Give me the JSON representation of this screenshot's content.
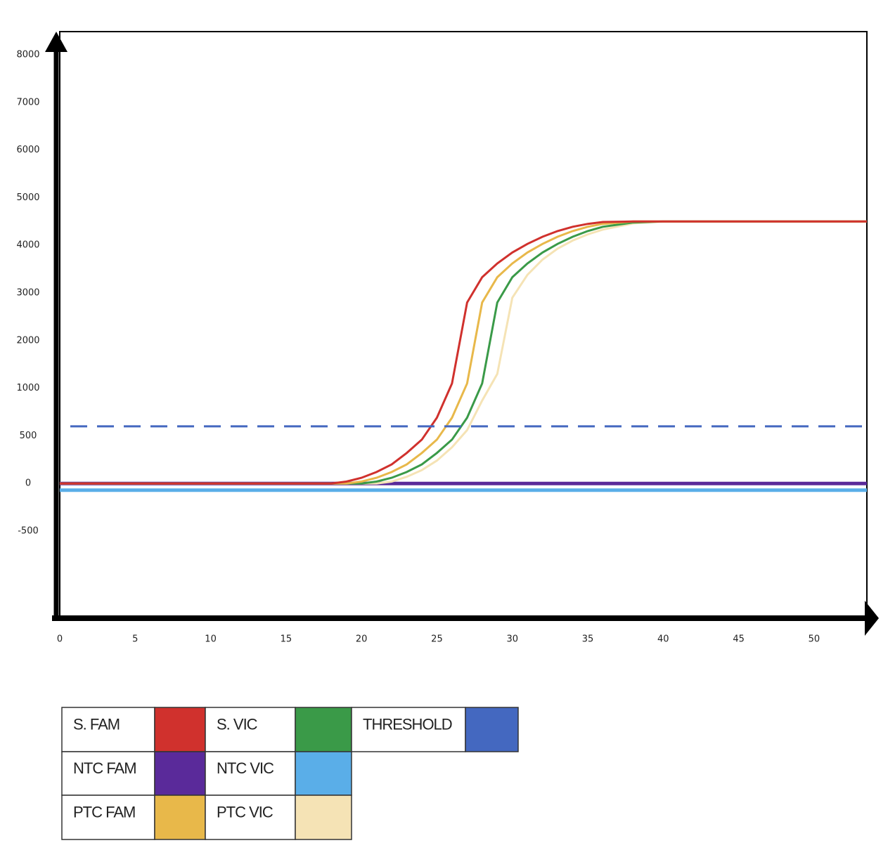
{
  "chart_data": {
    "type": "line",
    "x": [
      0,
      18,
      19,
      20,
      21,
      22,
      23,
      24,
      25,
      26,
      27,
      28,
      29,
      30,
      31,
      32,
      33,
      34,
      35,
      36,
      38,
      40,
      53.5
    ],
    "series": [
      {
        "name": "S. FAM",
        "color": "#d0312d",
        "values": [
          0,
          0,
          20,
          60,
          120,
          200,
          320,
          460,
          690,
          1100,
          2800,
          3330,
          3620,
          3850,
          4030,
          4180,
          4300,
          4390,
          4450,
          4490,
          4500,
          4500,
          4500
        ]
      },
      {
        "name": "S. VIC",
        "color": "#3a9a48",
        "values": [
          0,
          0,
          0,
          0,
          20,
          60,
          120,
          200,
          320,
          460,
          690,
          1100,
          2800,
          3330,
          3620,
          3850,
          4030,
          4180,
          4300,
          4390,
          4480,
          4500,
          4500
        ]
      },
      {
        "name": "NTC FAM",
        "color": "#5a2a9a",
        "values": [
          0,
          0,
          0,
          0,
          0,
          0,
          0,
          0,
          0,
          0,
          0,
          0,
          0,
          0,
          0,
          0,
          0,
          0,
          0,
          0,
          0,
          0,
          0
        ]
      },
      {
        "name": "NTC VIC",
        "color": "#5aaee8",
        "values": [
          -70,
          -70,
          -70,
          -70,
          -70,
          -70,
          -70,
          -70,
          -70,
          -70,
          -70,
          -70,
          -70,
          -70,
          -70,
          -70,
          -70,
          -70,
          -70,
          -70,
          -70,
          -70,
          -70
        ]
      },
      {
        "name": "PTC FAM",
        "color": "#e8b84a",
        "values": [
          0,
          0,
          0,
          20,
          60,
          120,
          200,
          320,
          460,
          690,
          1100,
          2800,
          3330,
          3620,
          3850,
          4030,
          4180,
          4300,
          4390,
          4450,
          4500,
          4500,
          4500
        ]
      },
      {
        "name": "PTC VIC",
        "color": "#f5e3b5",
        "values": [
          0,
          0,
          0,
          0,
          0,
          20,
          70,
          140,
          240,
          380,
          560,
          870,
          1300,
          2900,
          3380,
          3700,
          3930,
          4100,
          4230,
          4330,
          4460,
          4500,
          4500
        ]
      }
    ],
    "threshold": {
      "name": "THRESHOLD",
      "color": "#4468c0",
      "value": 600,
      "x": [
        0.7,
        53.5
      ]
    },
    "xlim": [
      0,
      53.5
    ],
    "xticks": [
      0,
      5,
      10,
      15,
      20,
      25,
      30,
      35,
      40,
      45,
      50
    ],
    "ylim": [
      -1400,
      8500
    ],
    "yticks": [
      8000,
      7000,
      6000,
      5000,
      4000,
      3000,
      2000,
      1000,
      500,
      0,
      -500
    ],
    "grid": false
  }
}
